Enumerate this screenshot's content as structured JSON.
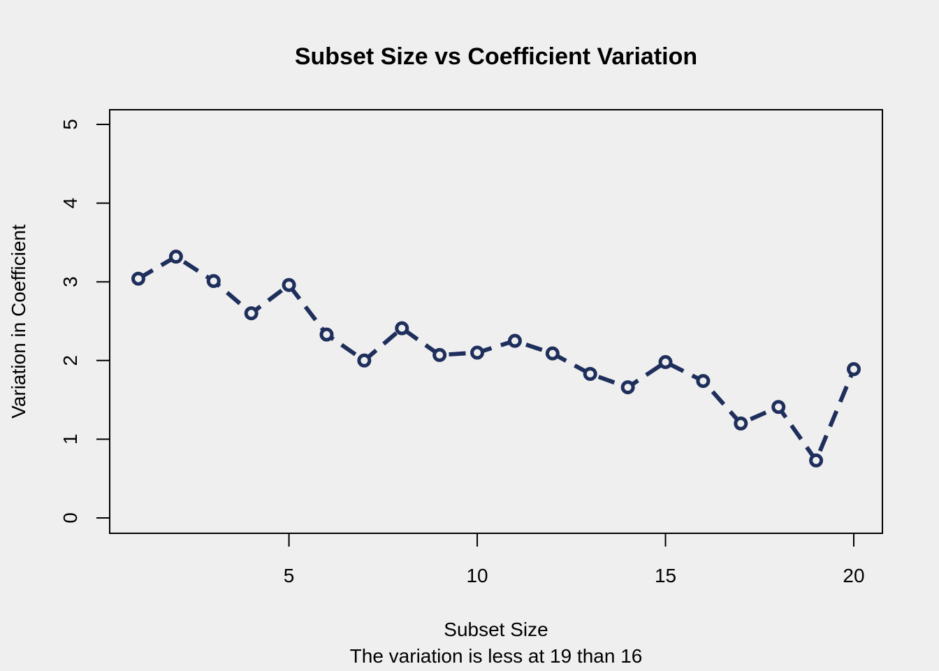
{
  "chart_data": {
    "type": "line",
    "title": "Subset Size vs Coefficient Variation",
    "xlabel": "Subset Size",
    "ylabel": "Variation in Coefficient",
    "subtitle": "The variation is less at 19 than 16",
    "xlim": [
      1,
      20
    ],
    "ylim": [
      0,
      5
    ],
    "x_ticks": [
      5,
      10,
      15,
      20
    ],
    "y_ticks": [
      0,
      1,
      2,
      3,
      4,
      5
    ],
    "grid": false,
    "line_style": "dashed",
    "marker": "open-circle",
    "color": "#1f2f5c",
    "background": "#efefef",
    "series": [
      {
        "x": [
          1,
          2,
          3,
          4,
          5,
          6,
          7,
          8,
          9,
          10,
          11,
          12,
          13,
          14,
          15,
          16,
          17,
          18,
          19,
          20
        ],
        "values": [
          3.04,
          3.32,
          3.01,
          2.6,
          2.96,
          2.33,
          2.0,
          2.41,
          2.07,
          2.1,
          2.25,
          2.09,
          1.83,
          1.66,
          1.98,
          1.74,
          1.2,
          1.41,
          0.73,
          1.89
        ]
      }
    ]
  }
}
